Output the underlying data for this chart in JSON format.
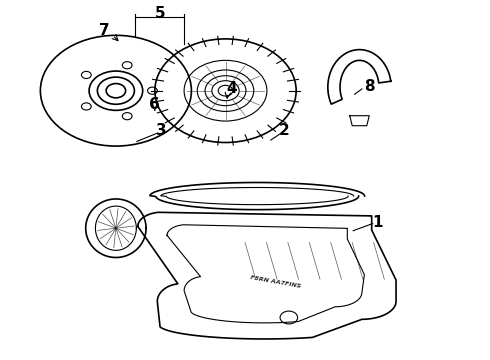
{
  "background_color": "#ffffff",
  "line_color": "#000000",
  "label_color": "#000000",
  "fig_width": 4.9,
  "fig_height": 3.6,
  "dpi": 100,
  "label_fontsize": 11
}
